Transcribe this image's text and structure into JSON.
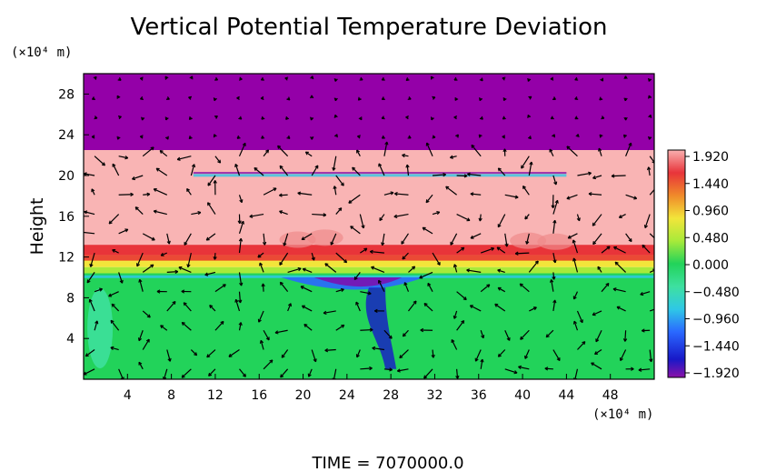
{
  "chart_data": {
    "type": "heatmap",
    "title": "Vertical Potential Temperature Deviation",
    "ylabel": "Height",
    "y_unit": "(×10⁴ m)",
    "x_unit": "(×10⁴ m)",
    "xlim": [
      0,
      52
    ],
    "ylim": [
      0,
      30
    ],
    "x_ticks": [
      "4",
      "8",
      "12",
      "16",
      "20",
      "24",
      "28",
      "32",
      "36",
      "40",
      "44",
      "48"
    ],
    "y_ticks": [
      "4",
      "8",
      "12",
      "16",
      "20",
      "24",
      "28"
    ],
    "colorbar": {
      "min": -1.92,
      "max": 1.92,
      "tick_labels": [
        "1.920",
        "1.440",
        "0.960",
        "0.480",
        "0.000",
        "−0.480",
        "−0.960",
        "−1.440",
        "−1.920"
      ],
      "colors": [
        "#f9b0b0",
        "#e8343a",
        "#f08a2a",
        "#f2e53a",
        "#a8ea3a",
        "#22d35a",
        "#3ee0a0",
        "#2fc8e6",
        "#2a68ff",
        "#1818c8",
        "#8a12a8"
      ]
    },
    "layers": [
      {
        "y_range": [
          22.5,
          30
        ],
        "value": -1.92,
        "color": "#9400a8"
      },
      {
        "y_range": [
          13.2,
          22.5
        ],
        "value": 1.92,
        "color": "#f9b4b4"
      },
      {
        "y_range": [
          12.2,
          13.2
        ],
        "value": 1.6,
        "color": "#e8343a"
      },
      {
        "y_range": [
          11.6,
          12.2
        ],
        "value": 1.2,
        "color": "#f08a2a"
      },
      {
        "y_range": [
          11.0,
          11.6
        ],
        "value": 0.7,
        "color": "#f2e53a"
      },
      {
        "y_range": [
          10.4,
          11.0
        ],
        "value": 0.3,
        "color": "#a8ea3a"
      },
      {
        "y_range": [
          0,
          10.4
        ],
        "value": 0.0,
        "color": "#22d35a"
      }
    ],
    "grid": false,
    "annotation": "TIME  =  7070000.0"
  }
}
